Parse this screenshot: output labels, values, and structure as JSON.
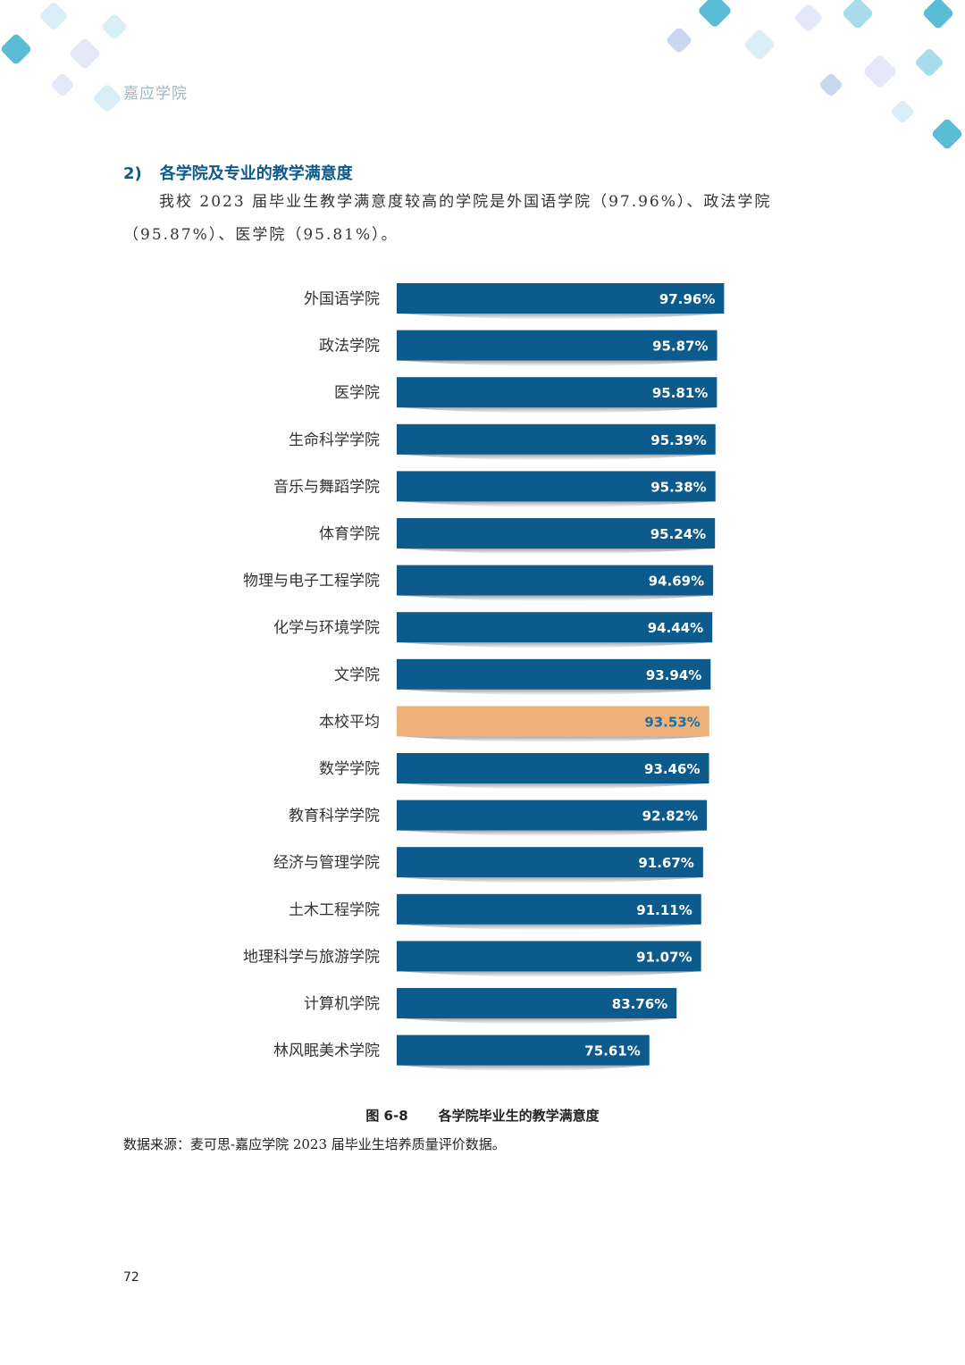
{
  "header": {
    "school": "嘉应学院"
  },
  "section": {
    "number": "2)",
    "title": "各学院及专业的教学满意度",
    "paragraph": "我校 2023 届毕业生教学满意度较高的学院是外国语学院（97.96%）、政法学院（95.87%）、医学院（95.81%）。"
  },
  "colors": {
    "bar": "#0d5a8c",
    "highlight": "#f0b27a",
    "bar_label": "#ffffff",
    "highlight_label": "#1f6f9e",
    "decor": [
      "#5bbcd6",
      "#a8dcea",
      "#d9eef6",
      "#e4e8f8",
      "#c8d7ee"
    ]
  },
  "chart_data": {
    "type": "bar",
    "orientation": "horizontal",
    "categories": [
      "外国语学院",
      "政法学院",
      "医学院",
      "生命科学学院",
      "音乐与舞蹈学院",
      "体育学院",
      "物理与电子工程学院",
      "化学与环境学院",
      "文学院",
      "本校平均",
      "数学学院",
      "教育科学学院",
      "经济与管理学院",
      "土木工程学院",
      "地理科学与旅游学院",
      "计算机学院",
      "林风眠美术学院"
    ],
    "values": [
      97.96,
      95.87,
      95.81,
      95.39,
      95.38,
      95.24,
      94.69,
      94.44,
      93.94,
      93.53,
      93.46,
      92.82,
      91.67,
      91.11,
      91.07,
      83.76,
      75.61
    ],
    "value_labels": [
      "97.96%",
      "95.87%",
      "95.81%",
      "95.39%",
      "95.38%",
      "95.24%",
      "94.69%",
      "94.44%",
      "93.94%",
      "93.53%",
      "93.46%",
      "92.82%",
      "91.67%",
      "91.11%",
      "91.07%",
      "83.76%",
      "75.61%"
    ],
    "highlight_category": "本校平均",
    "unit": "%",
    "xlim": [
      0,
      100
    ],
    "grid": false,
    "legend": "none"
  },
  "caption": {
    "figure_number": "图 6-8",
    "title": "各学院毕业生的教学满意度"
  },
  "source": "数据来源：麦可思-嘉应学院 2023 届毕业生培养质量评价数据。",
  "page_number": "72"
}
